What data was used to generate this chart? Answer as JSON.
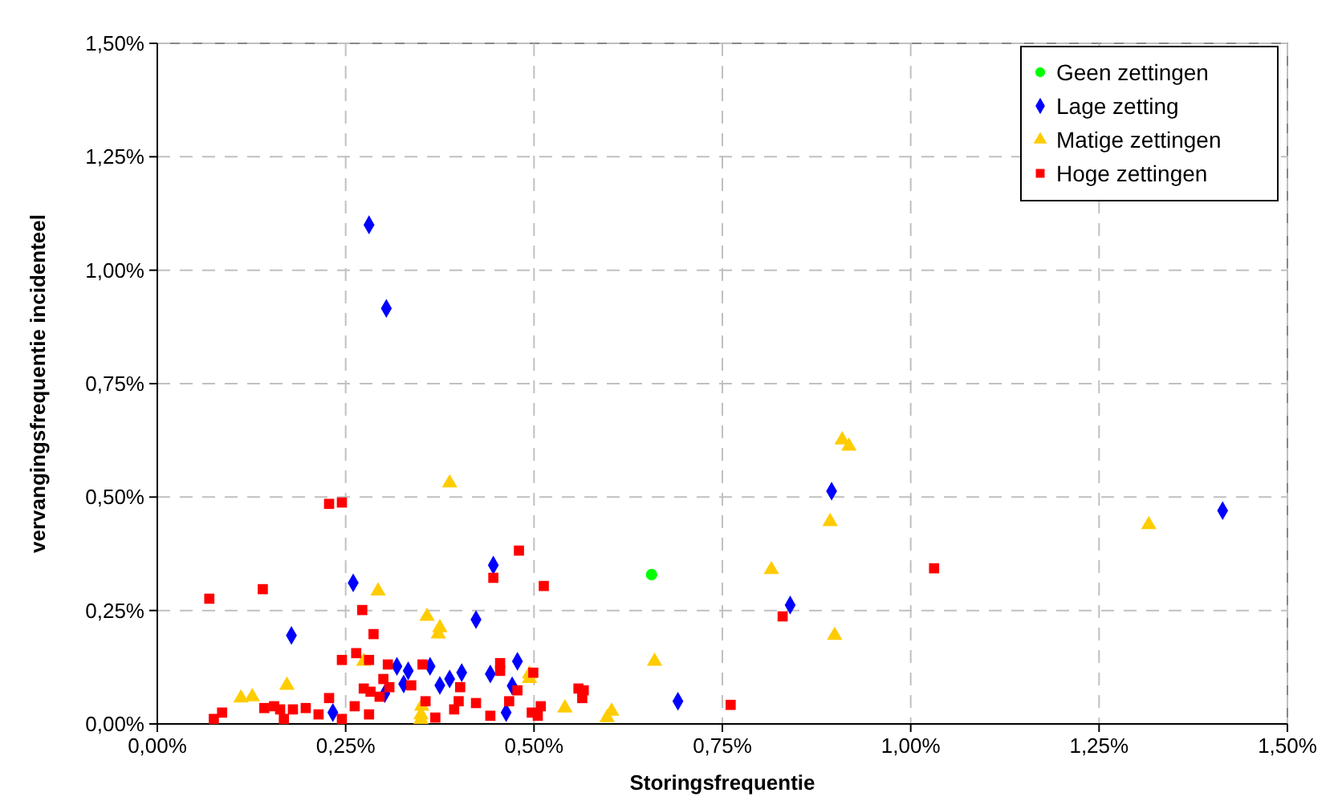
{
  "chart_data": {
    "type": "scatter",
    "xlabel": "Storingsfrequentie",
    "ylabel": "vervangingsfrequentie incidenteel",
    "xlim": [
      0,
      1.5
    ],
    "ylim": [
      0,
      1.5
    ],
    "xticks": [
      {
        "value": 0,
        "label": "0,00%"
      },
      {
        "value": 0.25,
        "label": "0,25%"
      },
      {
        "value": 0.5,
        "label": "0,50%"
      },
      {
        "value": 0.75,
        "label": "0,75%"
      },
      {
        "value": 1,
        "label": "1,00%"
      },
      {
        "value": 1.25,
        "label": "1,25%"
      },
      {
        "value": 1.5,
        "label": "1,50%"
      }
    ],
    "yticks": [
      {
        "value": 0,
        "label": "0,00%"
      },
      {
        "value": 0.25,
        "label": "0,25%"
      },
      {
        "value": 0.5,
        "label": "0,50%"
      },
      {
        "value": 0.75,
        "label": "0,75%"
      },
      {
        "value": 1,
        "label": "1,00%"
      },
      {
        "value": 1.25,
        "label": "1,25%"
      },
      {
        "value": 1.5,
        "label": "1,50%"
      }
    ],
    "grid": true,
    "legend": "top right",
    "series": [
      {
        "name": "Geen zettingen",
        "color": "#00ff00",
        "marker": "circle",
        "x": [
          0.656
        ],
        "values": [
          0.329
        ]
      },
      {
        "name": "Lage zetting",
        "color": "#0000ff",
        "marker": "diamond",
        "x": [
          0.281,
          0.304,
          0.26,
          0.178,
          0.233,
          0.318,
          0.333,
          0.327,
          0.362,
          0.375,
          0.388,
          0.404,
          0.423,
          0.442,
          0.446,
          0.302,
          0.478,
          0.471,
          0.463,
          0.691,
          0.84,
          0.895,
          1.414
        ],
        "values": [
          1.1,
          0.916,
          0.311,
          0.195,
          0.025,
          0.127,
          0.117,
          0.088,
          0.127,
          0.085,
          0.099,
          0.113,
          0.23,
          0.11,
          0.35,
          0.067,
          0.138,
          0.084,
          0.025,
          0.05,
          0.262,
          0.513,
          0.47
        ]
      },
      {
        "name": "Matige zettingen",
        "color": "#ffcc00",
        "marker": "triangle",
        "x": [
          0.388,
          0.293,
          0.358,
          0.375,
          0.373,
          0.111,
          0.126,
          0.172,
          0.274,
          0.351,
          0.35,
          0.35,
          0.494,
          0.494,
          0.541,
          0.603,
          0.597,
          0.66,
          0.815,
          0.893,
          0.899,
          0.909,
          0.918,
          1.316
        ],
        "values": [
          0.531,
          0.293,
          0.237,
          0.212,
          0.198,
          0.057,
          0.06,
          0.085,
          0.138,
          0.039,
          0.02,
          0.01,
          0.11,
          0.1,
          0.035,
          0.028,
          0.014,
          0.138,
          0.34,
          0.446,
          0.195,
          0.626,
          0.612,
          0.439
        ]
      },
      {
        "name": "Hoge zettingen",
        "color": "#ff0000",
        "marker": "square",
        "x": [
          0.069,
          0.075,
          0.086,
          0.14,
          0.142,
          0.155,
          0.163,
          0.168,
          0.18,
          0.197,
          0.214,
          0.228,
          0.228,
          0.245,
          0.245,
          0.245,
          0.262,
          0.272,
          0.264,
          0.281,
          0.274,
          0.283,
          0.281,
          0.287,
          0.295,
          0.306,
          0.3,
          0.308,
          0.337,
          0.352,
          0.356,
          0.369,
          0.394,
          0.4,
          0.402,
          0.423,
          0.442,
          0.446,
          0.48,
          0.513,
          0.455,
          0.455,
          0.499,
          0.478,
          0.467,
          0.497,
          0.505,
          0.509,
          0.559,
          0.566,
          0.564,
          0.761,
          0.83,
          1.031
        ],
        "values": [
          0.276,
          0.011,
          0.025,
          0.297,
          0.035,
          0.039,
          0.032,
          0.011,
          0.032,
          0.035,
          0.021,
          0.057,
          0.485,
          0.488,
          0.141,
          0.011,
          0.039,
          0.251,
          0.156,
          0.141,
          0.078,
          0.071,
          0.021,
          0.198,
          0.06,
          0.131,
          0.099,
          0.081,
          0.085,
          0.131,
          0.05,
          0.014,
          0.032,
          0.05,
          0.081,
          0.046,
          0.018,
          0.322,
          0.382,
          0.304,
          0.134,
          0.117,
          0.113,
          0.074,
          0.05,
          0.025,
          0.018,
          0.039,
          0.078,
          0.074,
          0.057,
          0.042,
          0.237,
          0.343
        ]
      }
    ]
  }
}
